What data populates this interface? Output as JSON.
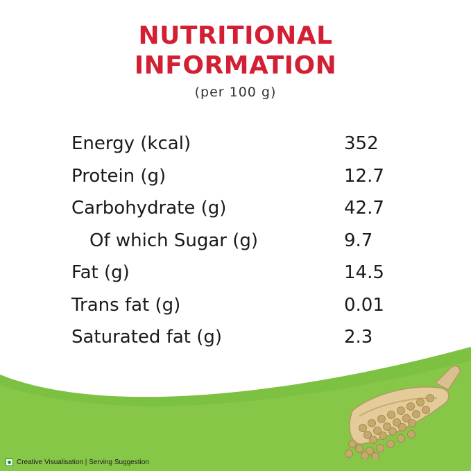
{
  "header": {
    "title_line1": "NUTRITIONAL",
    "title_line2": "INFORMATION",
    "subtitle": "(per 100 g)"
  },
  "nutrients": [
    {
      "name": "Energy (kcal)",
      "value": "352",
      "indent": false
    },
    {
      "name": "Protein (g)",
      "value": "12.7",
      "indent": false
    },
    {
      "name": "Carbohydrate (g)",
      "value": "42.7",
      "indent": false
    },
    {
      "name": "Of which Sugar (g)",
      "value": "9.7",
      "indent": true
    },
    {
      "name": "Fat (g)",
      "value": "14.5",
      "indent": false
    },
    {
      "name": "Trans fat (g)",
      "value": "0.01",
      "indent": false
    },
    {
      "name": "Saturated fat (g)",
      "value": "2.3",
      "indent": false
    }
  ],
  "footer": {
    "note": "Creative Visualisation | Serving Suggestion"
  },
  "colors": {
    "title": "#d31f33",
    "green": "#7dc142",
    "veg_mark": "#2a8a2a"
  },
  "icons": {
    "veg_mark": "veg-symbol-icon",
    "scoop": "coriander-seed-scoop-icon"
  }
}
